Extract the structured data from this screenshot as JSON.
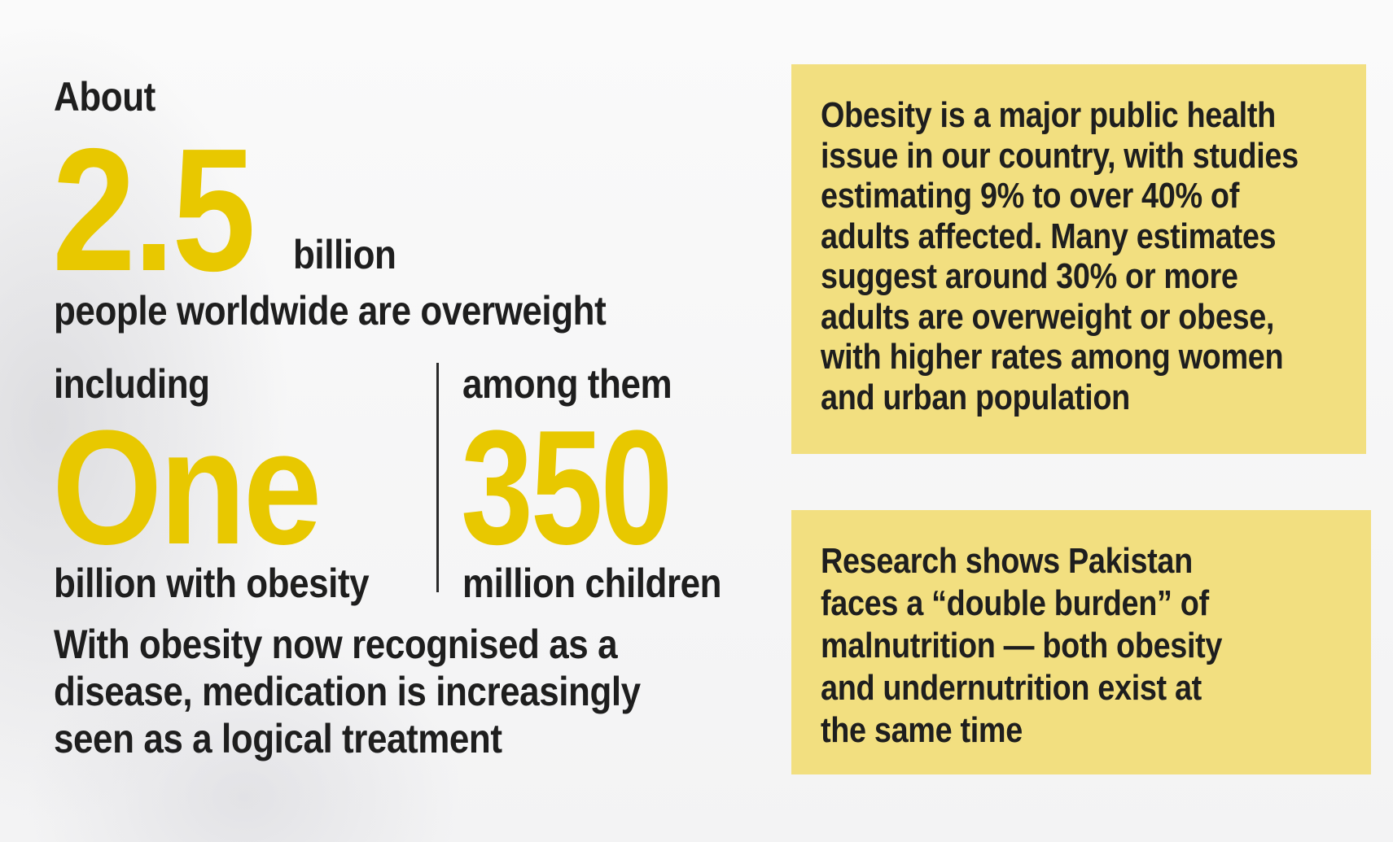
{
  "left": {
    "about": "About",
    "big_number": "2.5",
    "billion": "billion",
    "overweight_line": "people worldwide are overweight",
    "including": "including",
    "one": "One",
    "obesity_line": "billion with obesity",
    "among_them": "among them",
    "three_fifty": "350",
    "children_line": "million children",
    "paragraph_lines": [
      "With obesity now recognised as a",
      "disease, medication is increasingly",
      "seen as a logical treatment"
    ]
  },
  "box1": {
    "lines": [
      "Obesity is a major public health",
      "issue in our country, with studies",
      "estimating 9% to over 40% of",
      "adults affected. Many estimates",
      "suggest around 30% or more",
      "adults are overweight or obese,",
      "with higher rates among women",
      "and urban population"
    ]
  },
  "box2": {
    "lines": [
      "Research shows Pakistan",
      "faces a “double burden” of",
      "malnutrition — both obesity",
      "and undernutrition exist at",
      "the same time"
    ]
  },
  "colors": {
    "accent_yellow": "#e8c800",
    "box_background": "#f2df80",
    "text": "#1e1e1e"
  }
}
